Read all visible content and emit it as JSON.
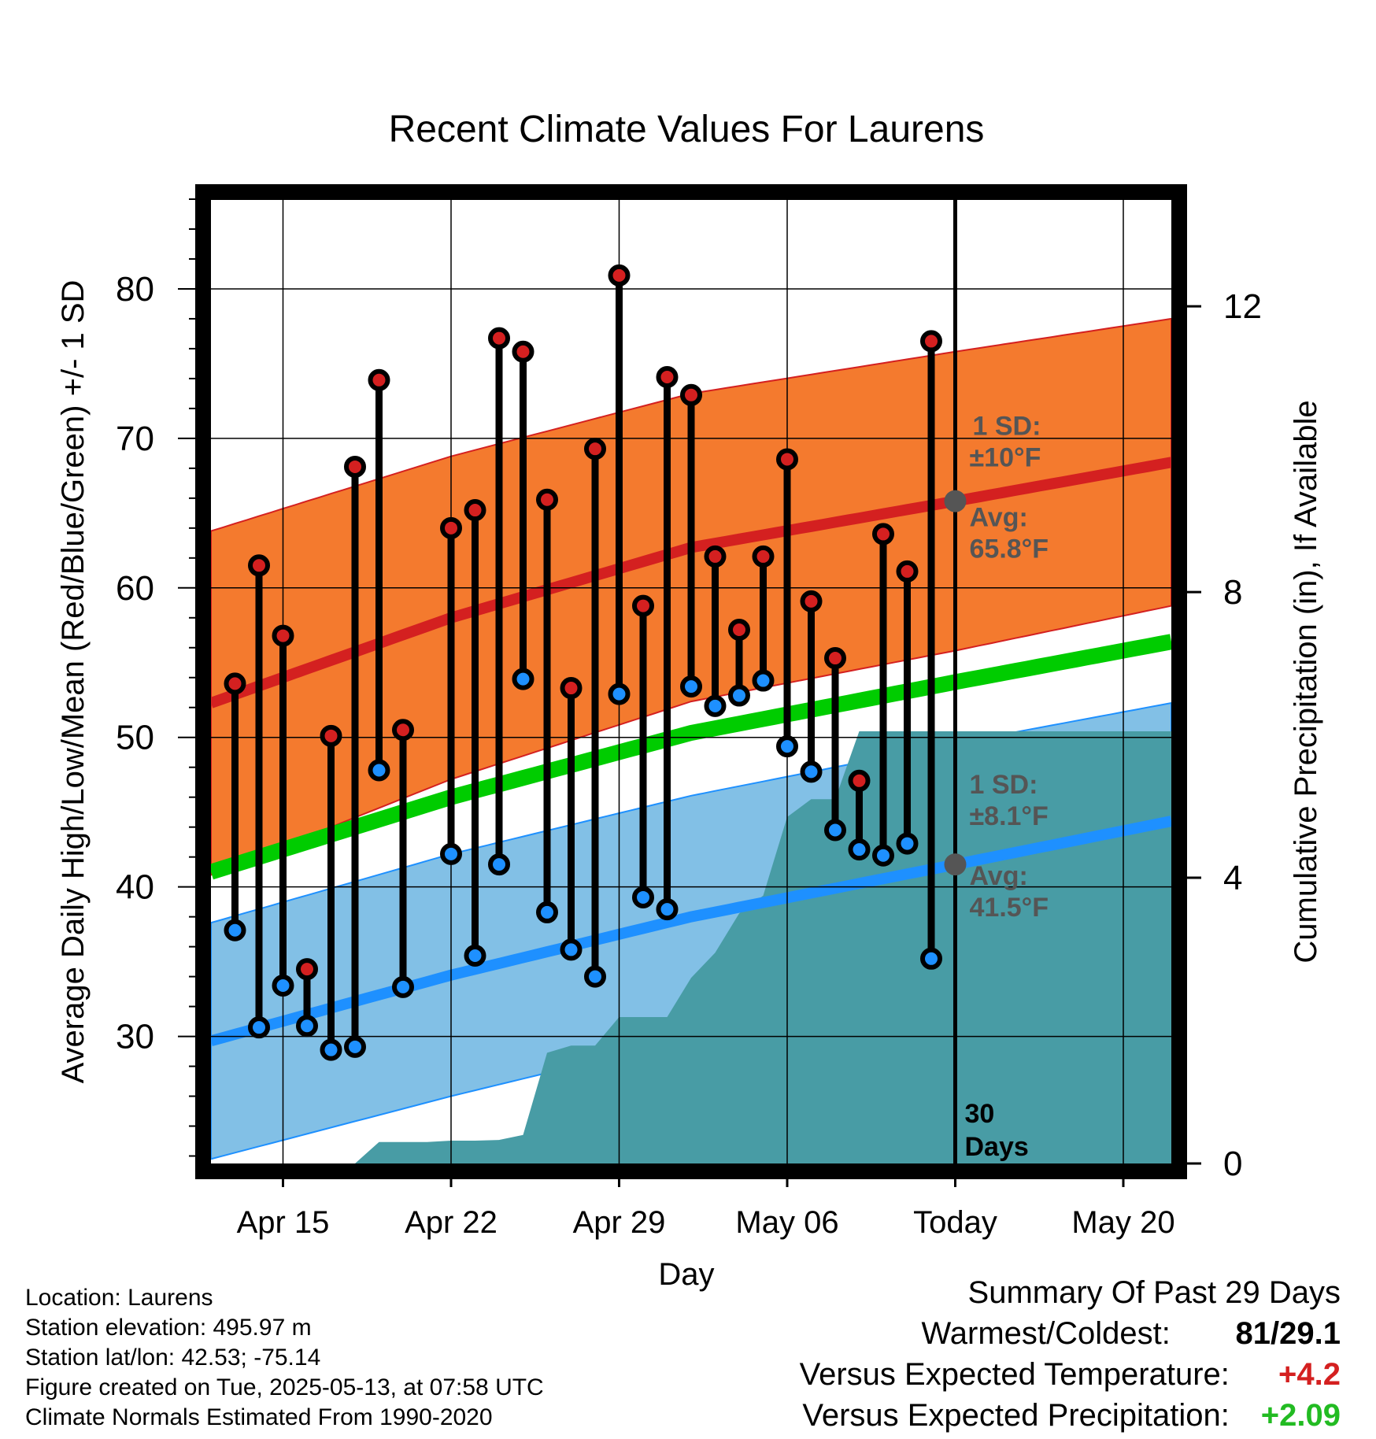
{
  "chart_data": {
    "type": "line",
    "title": "Recent Climate Values For Laurens",
    "xlabel": "Day",
    "ylabel": "Average Daily High/Low/Mean (Red/Blue/Green) +/- 1 SD",
    "y2label": "Cumulative Precipitation (in), If Available",
    "xlim": [
      "2025-04-12",
      "2025-05-22"
    ],
    "ylim": [
      21.5,
      86
    ],
    "y2lim": [
      0,
      13.5
    ],
    "x_ticks": [
      {
        "date": "2025-04-15",
        "label": "Apr 15"
      },
      {
        "date": "2025-04-22",
        "label": "Apr 22"
      },
      {
        "date": "2025-04-29",
        "label": "Apr 29"
      },
      {
        "date": "2025-05-06",
        "label": "May 06"
      },
      {
        "date": "2025-05-13",
        "label": "Today"
      },
      {
        "date": "2025-05-20",
        "label": "May 20"
      }
    ],
    "y_ticks": [
      30,
      40,
      50,
      60,
      70,
      80
    ],
    "y2_ticks": [
      0,
      4,
      8,
      12
    ],
    "grid": true,
    "colors": {
      "high": "#d42020",
      "low": "#1e90ff",
      "mean": "#00cc00",
      "high_band": "#f47a2e",
      "low_band": "#82c0e6",
      "precip": "#489ca5",
      "marker_avg": "#555555"
    },
    "normals": {
      "dates": [
        "2025-04-12",
        "2025-04-22",
        "2025-05-02",
        "2025-05-13",
        "2025-05-22"
      ],
      "high_mean": [
        52.3,
        58.0,
        62.7,
        65.8,
        68.4
      ],
      "high_sd": [
        11.5,
        10.8,
        10.3,
        10.0,
        9.6
      ],
      "low_mean": [
        29.7,
        34.1,
        38.0,
        41.5,
        44.4
      ],
      "low_sd": [
        7.9,
        8.1,
        8.1,
        8.1,
        7.9
      ],
      "mean": [
        41.0,
        46.0,
        50.3,
        53.7,
        56.4
      ]
    },
    "series": [
      {
        "name": "Daily High",
        "x": [
          "2025-04-13",
          "2025-04-14",
          "2025-04-15",
          "2025-04-16",
          "2025-04-17",
          "2025-04-18",
          "2025-04-19",
          "2025-04-20",
          "2025-04-22",
          "2025-04-23",
          "2025-04-24",
          "2025-04-25",
          "2025-04-26",
          "2025-04-27",
          "2025-04-28",
          "2025-04-29",
          "2025-04-30",
          "2025-05-01",
          "2025-05-02",
          "2025-05-03",
          "2025-05-04",
          "2025-05-05",
          "2025-05-06",
          "2025-05-07",
          "2025-05-08",
          "2025-05-09",
          "2025-05-10",
          "2025-05-11",
          "2025-05-12"
        ],
        "values": [
          53.6,
          61.5,
          56.8,
          34.5,
          50.1,
          68.1,
          73.9,
          50.5,
          64.0,
          65.2,
          76.7,
          75.8,
          65.9,
          53.3,
          69.3,
          80.9,
          58.8,
          74.1,
          72.9,
          62.1,
          57.2,
          62.1,
          68.6,
          59.1,
          55.3,
          47.1,
          63.6,
          61.1,
          76.5
        ]
      },
      {
        "name": "Daily Low",
        "x": [
          "2025-04-13",
          "2025-04-14",
          "2025-04-15",
          "2025-04-16",
          "2025-04-17",
          "2025-04-18",
          "2025-04-19",
          "2025-04-20",
          "2025-04-22",
          "2025-04-23",
          "2025-04-24",
          "2025-04-25",
          "2025-04-26",
          "2025-04-27",
          "2025-04-28",
          "2025-04-29",
          "2025-04-30",
          "2025-05-01",
          "2025-05-02",
          "2025-05-03",
          "2025-05-04",
          "2025-05-05",
          "2025-05-06",
          "2025-05-07",
          "2025-05-08",
          "2025-05-09",
          "2025-05-10",
          "2025-05-11",
          "2025-05-12"
        ],
        "values": [
          37.1,
          30.6,
          33.4,
          30.7,
          29.1,
          29.3,
          47.8,
          33.3,
          42.2,
          35.4,
          41.5,
          53.9,
          38.3,
          35.8,
          34.0,
          52.9,
          39.3,
          38.5,
          53.4,
          52.1,
          52.8,
          53.8,
          49.4,
          47.7,
          43.8,
          42.5,
          42.1,
          42.9,
          35.2
        ]
      },
      {
        "name": "Cumulative Precipitation",
        "x": [
          "2025-04-12",
          "2025-04-15",
          "2025-04-16",
          "2025-04-17",
          "2025-04-18",
          "2025-04-19",
          "2025-04-20",
          "2025-04-21",
          "2025-04-22",
          "2025-04-23",
          "2025-04-24",
          "2025-04-25",
          "2025-04-26",
          "2025-04-27",
          "2025-04-28",
          "2025-04-29",
          "2025-04-30",
          "2025-05-01",
          "2025-05-02",
          "2025-05-03",
          "2025-05-04",
          "2025-05-05",
          "2025-05-06",
          "2025-05-07",
          "2025-05-08",
          "2025-05-09",
          "2025-05-10",
          "2025-05-11",
          "2025-05-12",
          "2025-05-22"
        ],
        "values": [
          0,
          0,
          0,
          0,
          0,
          0.3,
          0.3,
          0.3,
          0.32,
          0.32,
          0.33,
          0.4,
          1.55,
          1.65,
          1.65,
          2.05,
          2.05,
          2.05,
          2.6,
          2.95,
          3.5,
          3.75,
          4.85,
          5.1,
          5.1,
          6.05,
          6.05,
          6.05,
          6.05,
          6.05
        ]
      }
    ],
    "annotations": {
      "high": {
        "sd_label": "1 SD:",
        "sd_value": "±10°F",
        "avg_label": "Avg:",
        "avg_value": "65.8°F",
        "avg": 65.8
      },
      "low": {
        "sd_label": "1 SD:",
        "sd_value": "±8.1°F",
        "avg_label": "Avg:",
        "avg_value": "41.5°F",
        "avg": 41.5
      },
      "days_label_1": "30",
      "days_label_2": "Days"
    }
  },
  "footer": {
    "location": "Location: Laurens",
    "elevation": "Station elevation: 495.97 m",
    "latlon": "Station lat/lon: 42.53; -75.14",
    "created": "Figure created on Tue, 2025-05-13, at 07:58 UTC",
    "normals": "Climate Normals Estimated From 1990-2020"
  },
  "summary": {
    "title": "Summary Of Past 29 Days",
    "warmest_coldest_label": "Warmest/Coldest:",
    "warmest_coldest_value": "81/29.1",
    "temp_label": "Versus Expected Temperature:",
    "temp_value": "+4.2",
    "temp_color": "#d42020",
    "precip_label": "Versus Expected Precipitation:",
    "precip_value": "+2.09",
    "precip_color": "#22bb22"
  }
}
